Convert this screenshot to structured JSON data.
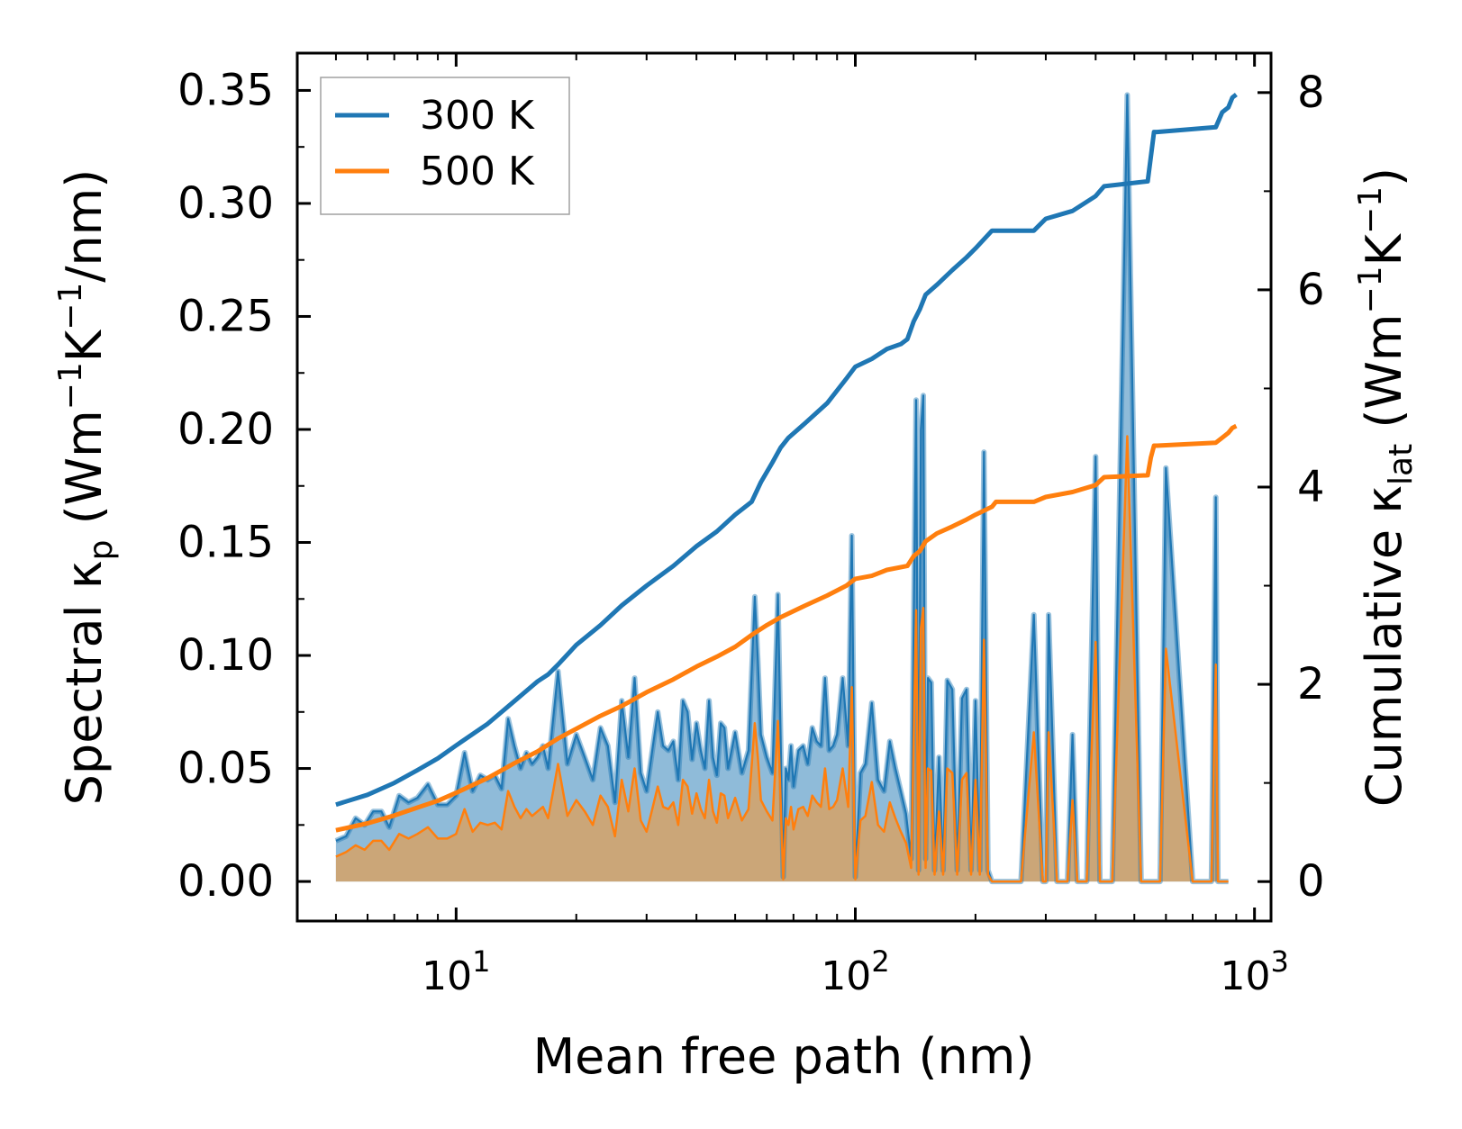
{
  "chart_data": {
    "type": "line",
    "title": "",
    "xlabel": "Mean free path (nm)",
    "ylabel_left": {
      "main": "Spectral κ",
      "sub": "p",
      "units": "(Wm",
      "u1": "−1",
      "u2": "K",
      "u3": "−1",
      "u4": "/nm)"
    },
    "ylabel_right": {
      "main": "Cumulative κ",
      "sub": "lat",
      "units": "(Wm",
      "u1": "−1",
      "u2": "K",
      "u3": "−1",
      "u4": ")"
    },
    "x_scale": "log",
    "xlim": [
      4,
      1100
    ],
    "ylim_left": [
      -0.0175,
      0.3665
    ],
    "ylim_right": [
      -0.4,
      8.4
    ],
    "x_ticks": [
      {
        "value": 10,
        "base": "10",
        "exp": "1"
      },
      {
        "value": 100,
        "base": "10",
        "exp": "2"
      },
      {
        "value": 1000,
        "base": "10",
        "exp": "3"
      }
    ],
    "y_ticks_left": [
      "0.00",
      "0.05",
      "0.10",
      "0.15",
      "0.20",
      "0.25",
      "0.30",
      "0.35"
    ],
    "y_ticks_left_values": [
      0,
      0.05,
      0.1,
      0.15,
      0.2,
      0.25,
      0.3,
      0.35
    ],
    "y_ticks_right": [
      "0",
      "2",
      "4",
      "6",
      "8"
    ],
    "y_ticks_right_values": [
      0,
      2,
      4,
      6,
      8
    ],
    "legend": {
      "position": "top-left",
      "entries": [
        "300 K",
        "500 K"
      ]
    },
    "colors": {
      "300K": "#1f77b4",
      "500K": "#ff7f0e",
      "fill300": "#1f77b4",
      "fill500": "#d2a46d"
    },
    "spectral_x": [
      5,
      5.3,
      5.6,
      5.9,
      6.2,
      6.5,
      6.8,
      7.2,
      7.6,
      8,
      8.5,
      9,
      9.5,
      10,
      10.5,
      11,
      11.5,
      12,
      12.5,
      13,
      13.5,
      14,
      14.5,
      15,
      15.5,
      16,
      16.5,
      17,
      17.5,
      18,
      19,
      20,
      21,
      22,
      23,
      24,
      25,
      26,
      27,
      28,
      29,
      30,
      31,
      32,
      33,
      34,
      35,
      36,
      37,
      38,
      39,
      40,
      41,
      42,
      43,
      44,
      45,
      46,
      47,
      48,
      50,
      52,
      54,
      56,
      57,
      58,
      60,
      62,
      64,
      66,
      67,
      68,
      69,
      70,
      72,
      74,
      76,
      78,
      80,
      82,
      84,
      86,
      88,
      90,
      93,
      96,
      98,
      100,
      103,
      106,
      110,
      114,
      118,
      122,
      126,
      130,
      134,
      138,
      142,
      144,
      146,
      148,
      150,
      152,
      155,
      158,
      162,
      166,
      170,
      175,
      180,
      185,
      190,
      195,
      200,
      205,
      210,
      215,
      220,
      224,
      228,
      235,
      245,
      260,
      280,
      295,
      300,
      305,
      320,
      340,
      350,
      360,
      380,
      400,
      410,
      420,
      425,
      430,
      440,
      480,
      520,
      540,
      550,
      560,
      570,
      580,
      600,
      700,
      780,
      800,
      810,
      820,
      860,
      880,
      890,
      900
    ],
    "spectral_300": [
      0.018,
      0.02,
      0.028,
      0.025,
      0.031,
      0.031,
      0.024,
      0.038,
      0.035,
      0.037,
      0.043,
      0.034,
      0.034,
      0.038,
      0.057,
      0.04,
      0.047,
      0.045,
      0.047,
      0.041,
      0.072,
      0.06,
      0.05,
      0.057,
      0.052,
      0.055,
      0.06,
      0.05,
      0.072,
      0.093,
      0.052,
      0.065,
      0.055,
      0.045,
      0.068,
      0.06,
      0.035,
      0.08,
      0.055,
      0.09,
      0.048,
      0.04,
      0.058,
      0.075,
      0.06,
      0.058,
      0.062,
      0.045,
      0.08,
      0.075,
      0.054,
      0.07,
      0.058,
      0.05,
      0.08,
      0.055,
      0.047,
      0.07,
      0.068,
      0.05,
      0.066,
      0.048,
      0.058,
      0.126,
      0.098,
      0.065,
      0.055,
      0.048,
      0.127,
      0.002,
      0.05,
      0.045,
      0.06,
      0.042,
      0.058,
      0.06,
      0.052,
      0.068,
      0.062,
      0.06,
      0.09,
      0.058,
      0.06,
      0.065,
      0.09,
      0.06,
      0.153,
      0.002,
      0.048,
      0.052,
      0.079,
      0.045,
      0.04,
      0.062,
      0.05,
      0.04,
      0.03,
      0.01,
      0.213,
      0.005,
      0.2,
      0.215,
      0.01,
      0.09,
      0.088,
      0.005,
      0.055,
      0.005,
      0.089,
      0.085,
      0.005,
      0.081,
      0.085,
      0.005,
      0.08,
      0.005,
      0.19,
      0.005,
      0.0,
      0.0,
      0.0,
      0.0,
      0.0,
      0.0,
      0.118,
      0.0,
      0.0,
      0.118,
      0.0,
      0.0,
      0.065,
      0.0,
      0.0,
      0.188,
      0.0,
      0.0,
      0.0,
      0.0,
      0.0,
      0.348,
      0.0,
      0.0,
      0.0,
      0.0,
      0.0,
      0.0,
      0.183,
      0.0,
      0.0,
      0.17,
      0.0,
      0.0,
      0.0
    ],
    "spectral_500": [
      0.011,
      0.013,
      0.016,
      0.014,
      0.018,
      0.018,
      0.014,
      0.021,
      0.019,
      0.021,
      0.024,
      0.019,
      0.019,
      0.021,
      0.032,
      0.022,
      0.026,
      0.025,
      0.026,
      0.023,
      0.04,
      0.033,
      0.028,
      0.032,
      0.029,
      0.031,
      0.033,
      0.028,
      0.04,
      0.052,
      0.029,
      0.036,
      0.031,
      0.025,
      0.038,
      0.033,
      0.02,
      0.045,
      0.031,
      0.05,
      0.027,
      0.022,
      0.032,
      0.042,
      0.033,
      0.032,
      0.035,
      0.025,
      0.045,
      0.042,
      0.03,
      0.039,
      0.032,
      0.028,
      0.045,
      0.031,
      0.026,
      0.039,
      0.038,
      0.028,
      0.037,
      0.027,
      0.032,
      0.07,
      0.055,
      0.036,
      0.031,
      0.027,
      0.071,
      0.001,
      0.028,
      0.025,
      0.033,
      0.023,
      0.032,
      0.033,
      0.029,
      0.038,
      0.035,
      0.033,
      0.05,
      0.032,
      0.033,
      0.036,
      0.05,
      0.033,
      0.086,
      0.001,
      0.027,
      0.029,
      0.044,
      0.025,
      0.022,
      0.035,
      0.028,
      0.022,
      0.017,
      0.006,
      0.12,
      0.003,
      0.112,
      0.121,
      0.006,
      0.05,
      0.049,
      0.003,
      0.031,
      0.003,
      0.05,
      0.048,
      0.003,
      0.045,
      0.048,
      0.003,
      0.045,
      0.003,
      0.107,
      0.003,
      0.0,
      0.0,
      0.0,
      0.0,
      0.0,
      0.0,
      0.066,
      0.0,
      0.0,
      0.066,
      0.0,
      0.0,
      0.036,
      0.0,
      0.0,
      0.106,
      0.0,
      0.0,
      0.0,
      0.0,
      0.0,
      0.197,
      0.0,
      0.0,
      0.0,
      0.0,
      0.0,
      0.0,
      0.103,
      0.0,
      0.0,
      0.096,
      0.0,
      0.0,
      0.0
    ],
    "cumulative_300": {
      "x": [
        5,
        6,
        7,
        8,
        9,
        10,
        12,
        14,
        16,
        17,
        18,
        20,
        23,
        26,
        30,
        35,
        40,
        45,
        50,
        55,
        58,
        62,
        65,
        68,
        75,
        85,
        95,
        100,
        110,
        120,
        130,
        135,
        140,
        145,
        150,
        160,
        175,
        190,
        200,
        220,
        225,
        280,
        300,
        350,
        400,
        420,
        540,
        550,
        560,
        570,
        800,
        830,
        860,
        880,
        900
      ],
      "y": [
        0.78,
        0.88,
        1.0,
        1.13,
        1.25,
        1.38,
        1.6,
        1.83,
        2.03,
        2.1,
        2.2,
        2.4,
        2.6,
        2.8,
        3.0,
        3.2,
        3.4,
        3.55,
        3.72,
        3.85,
        4.05,
        4.25,
        4.4,
        4.5,
        4.65,
        4.85,
        5.1,
        5.22,
        5.3,
        5.4,
        5.45,
        5.5,
        5.68,
        5.8,
        5.95,
        6.05,
        6.2,
        6.33,
        6.42,
        6.6,
        6.6,
        6.6,
        6.72,
        6.8,
        6.95,
        7.05,
        7.1,
        7.35,
        7.6,
        7.6,
        7.65,
        7.8,
        7.85,
        7.95,
        7.98
      ]
    },
    "cumulative_500": {
      "x": [
        5,
        6,
        7,
        8,
        9,
        10,
        12,
        14,
        16,
        18,
        20,
        23,
        26,
        30,
        35,
        40,
        45,
        50,
        55,
        60,
        65,
        75,
        85,
        95,
        100,
        110,
        120,
        135,
        140,
        145,
        150,
        160,
        175,
        190,
        200,
        220,
        225,
        280,
        300,
        350,
        400,
        420,
        540,
        550,
        560,
        570,
        800,
        830,
        860,
        880,
        900
      ],
      "y": [
        0.52,
        0.59,
        0.67,
        0.75,
        0.82,
        0.9,
        1.05,
        1.2,
        1.32,
        1.45,
        1.55,
        1.68,
        1.78,
        1.92,
        2.05,
        2.18,
        2.28,
        2.38,
        2.5,
        2.6,
        2.68,
        2.8,
        2.9,
        3.0,
        3.07,
        3.1,
        3.16,
        3.2,
        3.3,
        3.35,
        3.45,
        3.53,
        3.6,
        3.67,
        3.72,
        3.8,
        3.85,
        3.85,
        3.9,
        3.95,
        4.02,
        4.1,
        4.12,
        4.3,
        4.42,
        4.42,
        4.45,
        4.5,
        4.55,
        4.6,
        4.62
      ]
    }
  }
}
